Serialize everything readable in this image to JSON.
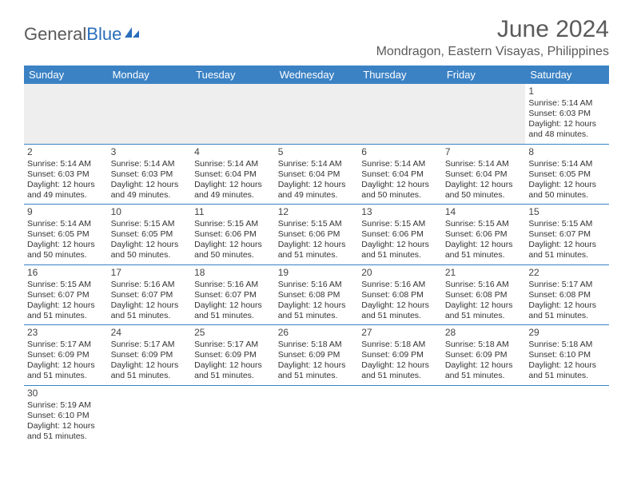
{
  "logo": {
    "part1": "General",
    "part2": "Blue"
  },
  "title": "June 2024",
  "location": "Mondragon, Eastern Visayas, Philippines",
  "colors": {
    "header_bg": "#3b82c4",
    "header_text": "#ffffff",
    "border": "#3b82c4",
    "empty_bg": "#eeeeee",
    "text": "#333333",
    "title_text": "#5a5a5a"
  },
  "typography": {
    "title_fontsize": 30,
    "location_fontsize": 16,
    "header_fontsize": 13,
    "cell_fontsize": 10.5,
    "daynum_fontsize": 12
  },
  "days_of_week": [
    "Sunday",
    "Monday",
    "Tuesday",
    "Wednesday",
    "Thursday",
    "Friday",
    "Saturday"
  ],
  "weeks": [
    [
      null,
      null,
      null,
      null,
      null,
      null,
      {
        "n": "1",
        "sr": "Sunrise: 5:14 AM",
        "ss": "Sunset: 6:03 PM",
        "dl": "Daylight: 12 hours and 48 minutes."
      }
    ],
    [
      {
        "n": "2",
        "sr": "Sunrise: 5:14 AM",
        "ss": "Sunset: 6:03 PM",
        "dl": "Daylight: 12 hours and 49 minutes."
      },
      {
        "n": "3",
        "sr": "Sunrise: 5:14 AM",
        "ss": "Sunset: 6:03 PM",
        "dl": "Daylight: 12 hours and 49 minutes."
      },
      {
        "n": "4",
        "sr": "Sunrise: 5:14 AM",
        "ss": "Sunset: 6:04 PM",
        "dl": "Daylight: 12 hours and 49 minutes."
      },
      {
        "n": "5",
        "sr": "Sunrise: 5:14 AM",
        "ss": "Sunset: 6:04 PM",
        "dl": "Daylight: 12 hours and 49 minutes."
      },
      {
        "n": "6",
        "sr": "Sunrise: 5:14 AM",
        "ss": "Sunset: 6:04 PM",
        "dl": "Daylight: 12 hours and 50 minutes."
      },
      {
        "n": "7",
        "sr": "Sunrise: 5:14 AM",
        "ss": "Sunset: 6:04 PM",
        "dl": "Daylight: 12 hours and 50 minutes."
      },
      {
        "n": "8",
        "sr": "Sunrise: 5:14 AM",
        "ss": "Sunset: 6:05 PM",
        "dl": "Daylight: 12 hours and 50 minutes."
      }
    ],
    [
      {
        "n": "9",
        "sr": "Sunrise: 5:14 AM",
        "ss": "Sunset: 6:05 PM",
        "dl": "Daylight: 12 hours and 50 minutes."
      },
      {
        "n": "10",
        "sr": "Sunrise: 5:15 AM",
        "ss": "Sunset: 6:05 PM",
        "dl": "Daylight: 12 hours and 50 minutes."
      },
      {
        "n": "11",
        "sr": "Sunrise: 5:15 AM",
        "ss": "Sunset: 6:06 PM",
        "dl": "Daylight: 12 hours and 50 minutes."
      },
      {
        "n": "12",
        "sr": "Sunrise: 5:15 AM",
        "ss": "Sunset: 6:06 PM",
        "dl": "Daylight: 12 hours and 51 minutes."
      },
      {
        "n": "13",
        "sr": "Sunrise: 5:15 AM",
        "ss": "Sunset: 6:06 PM",
        "dl": "Daylight: 12 hours and 51 minutes."
      },
      {
        "n": "14",
        "sr": "Sunrise: 5:15 AM",
        "ss": "Sunset: 6:06 PM",
        "dl": "Daylight: 12 hours and 51 minutes."
      },
      {
        "n": "15",
        "sr": "Sunrise: 5:15 AM",
        "ss": "Sunset: 6:07 PM",
        "dl": "Daylight: 12 hours and 51 minutes."
      }
    ],
    [
      {
        "n": "16",
        "sr": "Sunrise: 5:15 AM",
        "ss": "Sunset: 6:07 PM",
        "dl": "Daylight: 12 hours and 51 minutes."
      },
      {
        "n": "17",
        "sr": "Sunrise: 5:16 AM",
        "ss": "Sunset: 6:07 PM",
        "dl": "Daylight: 12 hours and 51 minutes."
      },
      {
        "n": "18",
        "sr": "Sunrise: 5:16 AM",
        "ss": "Sunset: 6:07 PM",
        "dl": "Daylight: 12 hours and 51 minutes."
      },
      {
        "n": "19",
        "sr": "Sunrise: 5:16 AM",
        "ss": "Sunset: 6:08 PM",
        "dl": "Daylight: 12 hours and 51 minutes."
      },
      {
        "n": "20",
        "sr": "Sunrise: 5:16 AM",
        "ss": "Sunset: 6:08 PM",
        "dl": "Daylight: 12 hours and 51 minutes."
      },
      {
        "n": "21",
        "sr": "Sunrise: 5:16 AM",
        "ss": "Sunset: 6:08 PM",
        "dl": "Daylight: 12 hours and 51 minutes."
      },
      {
        "n": "22",
        "sr": "Sunrise: 5:17 AM",
        "ss": "Sunset: 6:08 PM",
        "dl": "Daylight: 12 hours and 51 minutes."
      }
    ],
    [
      {
        "n": "23",
        "sr": "Sunrise: 5:17 AM",
        "ss": "Sunset: 6:09 PM",
        "dl": "Daylight: 12 hours and 51 minutes."
      },
      {
        "n": "24",
        "sr": "Sunrise: 5:17 AM",
        "ss": "Sunset: 6:09 PM",
        "dl": "Daylight: 12 hours and 51 minutes."
      },
      {
        "n": "25",
        "sr": "Sunrise: 5:17 AM",
        "ss": "Sunset: 6:09 PM",
        "dl": "Daylight: 12 hours and 51 minutes."
      },
      {
        "n": "26",
        "sr": "Sunrise: 5:18 AM",
        "ss": "Sunset: 6:09 PM",
        "dl": "Daylight: 12 hours and 51 minutes."
      },
      {
        "n": "27",
        "sr": "Sunrise: 5:18 AM",
        "ss": "Sunset: 6:09 PM",
        "dl": "Daylight: 12 hours and 51 minutes."
      },
      {
        "n": "28",
        "sr": "Sunrise: 5:18 AM",
        "ss": "Sunset: 6:09 PM",
        "dl": "Daylight: 12 hours and 51 minutes."
      },
      {
        "n": "29",
        "sr": "Sunrise: 5:18 AM",
        "ss": "Sunset: 6:10 PM",
        "dl": "Daylight: 12 hours and 51 minutes."
      }
    ],
    [
      {
        "n": "30",
        "sr": "Sunrise: 5:19 AM",
        "ss": "Sunset: 6:10 PM",
        "dl": "Daylight: 12 hours and 51 minutes."
      },
      null,
      null,
      null,
      null,
      null,
      null
    ]
  ]
}
